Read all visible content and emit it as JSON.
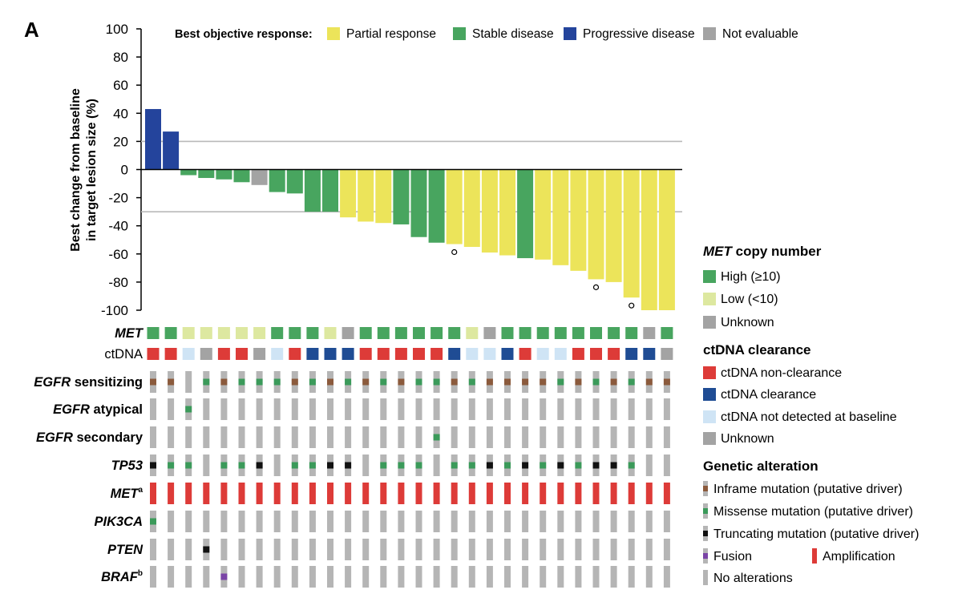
{
  "panel_label": "A",
  "response_legend": {
    "title": "Best objective response:",
    "items": [
      {
        "label": "Partial response",
        "color": "#ece45a"
      },
      {
        "label": "Stable disease",
        "color": "#48a55f"
      },
      {
        "label": "Progressive disease",
        "color": "#24449c"
      },
      {
        "label": "Not evaluable",
        "color": "#a3a3a3"
      }
    ]
  },
  "met_legend": {
    "title_italic": "MET",
    "title_rest": " copy number",
    "items": [
      {
        "key": "H",
        "label": "High (≥10)",
        "color": "#48a55f"
      },
      {
        "key": "L",
        "label": "Low (<10)",
        "color": "#dde8a0"
      },
      {
        "key": "U",
        "label": "Unknown",
        "color": "#a3a3a3"
      }
    ]
  },
  "ctdna_legend": {
    "title": "ctDNA clearance",
    "items": [
      {
        "key": "N",
        "label": "ctDNA non-clearance",
        "color": "#dd3b38"
      },
      {
        "key": "C",
        "label": "ctDNA clearance",
        "color": "#1f4c94"
      },
      {
        "key": "D",
        "label": "ctDNA not detected at baseline",
        "color": "#cfe4f5"
      },
      {
        "key": "U",
        "label": "Unknown",
        "color": "#a3a3a3"
      }
    ]
  },
  "genetic_legend": {
    "title": "Genetic alteration",
    "items": [
      {
        "key": "I",
        "label": "Inframe mutation (putative driver)",
        "color": "#8b5a3c"
      },
      {
        "key": "M",
        "label": "Missense mutation (putative driver)",
        "color": "#3b9a5a"
      },
      {
        "key": "T",
        "label": "Truncating mutation (putative driver)",
        "color": "#111111"
      },
      {
        "key": "F",
        "label": "Fusion",
        "color": "#7a44a6"
      },
      {
        "key": "A",
        "label": "Amplification",
        "color": "#dd3b38"
      },
      {
        "key": "N",
        "label": "No alterations",
        "color": "#b5b5b5"
      }
    ]
  },
  "chart_data": {
    "type": "bar",
    "ylabel_line1": "Best change from baseline",
    "ylabel_line2": "in target lesion size (%)",
    "ylim": [
      -100,
      100
    ],
    "yticks": [
      100,
      80,
      60,
      40,
      20,
      0,
      -20,
      -40,
      -60,
      -80,
      -100
    ],
    "reference_lines": [
      20,
      -30
    ],
    "values": [
      43,
      27,
      -4,
      -6,
      -7,
      -9,
      -11,
      -16,
      -17,
      -30,
      -30,
      -34,
      -37,
      -38,
      -39,
      -48,
      -52,
      -53,
      -55,
      -59,
      -61,
      -63,
      -64,
      -68,
      -72,
      -78,
      -80,
      -91,
      -100,
      -100
    ],
    "response": [
      "PD",
      "PD",
      "SD",
      "SD",
      "SD",
      "SD",
      "NE",
      "SD",
      "SD",
      "SD",
      "SD",
      "PR",
      "PR",
      "PR",
      "SD",
      "SD",
      "SD",
      "PR",
      "PR",
      "PR",
      "PR",
      "SD",
      "PR",
      "PR",
      "PR",
      "PR",
      "PR",
      "PR",
      "PR",
      "PR"
    ],
    "circle_markers": [
      17,
      25,
      27
    ],
    "met_row_label": "MET",
    "ctdna_row_label": "ctDNA",
    "met_copy": [
      "H",
      "H",
      "L",
      "L",
      "L",
      "L",
      "L",
      "H",
      "H",
      "H",
      "L",
      "U",
      "H",
      "H",
      "H",
      "H",
      "H",
      "H",
      "L",
      "U",
      "H",
      "H",
      "H",
      "H",
      "H",
      "H",
      "H",
      "H",
      "U",
      "H"
    ],
    "ctdna": [
      "N",
      "N",
      "D",
      "U",
      "N",
      "N",
      "U",
      "D",
      "N",
      "C",
      "C",
      "C",
      "N",
      "N",
      "N",
      "N",
      "N",
      "C",
      "D",
      "D",
      "C",
      "N",
      "D",
      "D",
      "N",
      "N",
      "N",
      "C",
      "C",
      "U"
    ],
    "genes": [
      {
        "label_italic": "EGFR",
        "label_rest": " sensitizing",
        "sup": "",
        "values": [
          "I",
          "I",
          "N",
          "M",
          "I",
          "M",
          "M",
          "M",
          "I",
          "M",
          "I",
          "M",
          "I",
          "M",
          "I",
          "M",
          "M",
          "I",
          "M",
          "I",
          "I",
          "I",
          "I",
          "M",
          "I",
          "M",
          "I",
          "M",
          "I",
          "I"
        ]
      },
      {
        "label_italic": "EGFR",
        "label_rest": " atypical",
        "sup": "",
        "values": [
          "N",
          "N",
          "M",
          "N",
          "N",
          "N",
          "N",
          "N",
          "N",
          "N",
          "N",
          "N",
          "N",
          "N",
          "N",
          "N",
          "N",
          "N",
          "N",
          "N",
          "N",
          "N",
          "N",
          "N",
          "N",
          "N",
          "N",
          "N",
          "N",
          "N"
        ]
      },
      {
        "label_italic": "EGFR",
        "label_rest": " secondary",
        "sup": "",
        "values": [
          "N",
          "N",
          "N",
          "N",
          "N",
          "N",
          "N",
          "N",
          "N",
          "N",
          "N",
          "N",
          "N",
          "N",
          "N",
          "N",
          "M",
          "N",
          "N",
          "N",
          "N",
          "N",
          "N",
          "N",
          "N",
          "N",
          "N",
          "N",
          "N",
          "N"
        ]
      },
      {
        "label_italic": "TP53",
        "label_rest": "",
        "sup": "",
        "values": [
          "T",
          "M",
          "M",
          "N",
          "M",
          "M",
          "T",
          "N",
          "M",
          "M",
          "T",
          "T",
          "N",
          "M",
          "M",
          "M",
          "N",
          "M",
          "M",
          "T",
          "M",
          "T",
          "M",
          "T",
          "M",
          "T",
          "T",
          "M",
          "N",
          "N"
        ]
      },
      {
        "label_italic": "MET",
        "label_rest": "",
        "sup": "a",
        "values": [
          "A",
          "A",
          "A",
          "A",
          "A",
          "A",
          "A",
          "A",
          "A",
          "A",
          "A",
          "A",
          "A",
          "A",
          "A",
          "A",
          "A",
          "A",
          "A",
          "A",
          "A",
          "A",
          "A",
          "A",
          "A",
          "A",
          "A",
          "A",
          "A",
          "A"
        ]
      },
      {
        "label_italic": "PIK3CA",
        "label_rest": "",
        "sup": "",
        "values": [
          "M",
          "N",
          "N",
          "N",
          "N",
          "N",
          "N",
          "N",
          "N",
          "N",
          "N",
          "N",
          "N",
          "N",
          "N",
          "N",
          "N",
          "N",
          "N",
          "N",
          "N",
          "N",
          "N",
          "N",
          "N",
          "N",
          "N",
          "N",
          "N",
          "N"
        ]
      },
      {
        "label_italic": "PTEN",
        "label_rest": "",
        "sup": "",
        "values": [
          "N",
          "N",
          "N",
          "T",
          "N",
          "N",
          "N",
          "N",
          "N",
          "N",
          "N",
          "N",
          "N",
          "N",
          "N",
          "N",
          "N",
          "N",
          "N",
          "N",
          "N",
          "N",
          "N",
          "N",
          "N",
          "N",
          "N",
          "N",
          "N",
          "N"
        ]
      },
      {
        "label_italic": "BRAF",
        "label_rest": "",
        "sup": "b",
        "values": [
          "N",
          "N",
          "N",
          "N",
          "F",
          "N",
          "N",
          "N",
          "N",
          "N",
          "N",
          "N",
          "N",
          "N",
          "N",
          "N",
          "N",
          "N",
          "N",
          "N",
          "N",
          "N",
          "N",
          "N",
          "N",
          "N",
          "N",
          "N",
          "N",
          "N"
        ]
      }
    ]
  }
}
